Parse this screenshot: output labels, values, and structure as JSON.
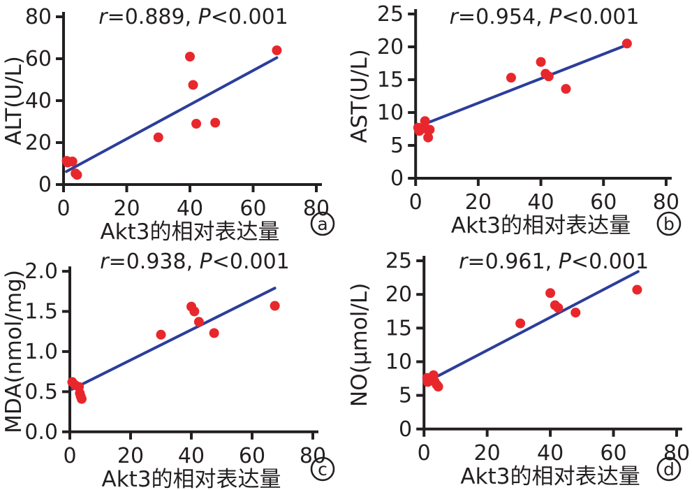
{
  "figure": {
    "background": "#ffffff"
  },
  "colors": {
    "point": "#e8272c",
    "trend_line": "#2c3e9a",
    "axis": "#231f20",
    "text": "#231f20"
  },
  "chart_data": [
    {
      "id": "a",
      "type": "scatter",
      "badge": "a",
      "ylabel": "ALT(U/L)",
      "xlabel": "Akt3的相对表达量",
      "annotation": "r=0.889, P<0.001",
      "annotation_parts": [
        {
          "text": "r",
          "italic": true
        },
        {
          "text": "=0.889, ",
          "italic": false
        },
        {
          "text": "P",
          "italic": true
        },
        {
          "text": "<0.001",
          "italic": false
        }
      ],
      "xlim": [
        0,
        80
      ],
      "ylim": [
        0,
        80
      ],
      "xticks": {
        "values": [
          0,
          20,
          40,
          60,
          80
        ],
        "labels": [
          "0",
          "20",
          "40",
          "60",
          "80"
        ]
      },
      "yticks": {
        "values": [
          0,
          20,
          40,
          60,
          80
        ],
        "labels": [
          "0",
          "20",
          "40",
          "60",
          "80"
        ]
      },
      "grid": false,
      "legend": null,
      "points": [
        [
          1,
          11.3
        ],
        [
          1.3,
          10.5
        ],
        [
          2.8,
          11.0
        ],
        [
          3.8,
          5.3
        ],
        [
          4.3,
          4.6
        ],
        [
          30,
          22.5
        ],
        [
          40,
          61
        ],
        [
          41,
          47.5
        ],
        [
          42,
          29
        ],
        [
          48,
          29.5
        ],
        [
          67.5,
          64
        ]
      ],
      "trend_line": {
        "x1": 0.9,
        "y1": 6.2,
        "x2": 67.5,
        "y2": 60.5
      }
    },
    {
      "id": "b",
      "type": "scatter",
      "badge": "b",
      "ylabel": "AST(U/L)",
      "xlabel": "Akt3的相对表达量",
      "annotation": "r=0.954, P<0.001",
      "annotation_parts": [
        {
          "text": "r",
          "italic": true
        },
        {
          "text": "=0.954, ",
          "italic": false
        },
        {
          "text": "P",
          "italic": true
        },
        {
          "text": "<0.001",
          "italic": false
        }
      ],
      "xlim": [
        0,
        80
      ],
      "ylim": [
        0,
        25
      ],
      "xticks": {
        "values": [
          0,
          20,
          40,
          60,
          80
        ],
        "labels": [
          "0",
          "20",
          "40",
          "60",
          "80"
        ]
      },
      "yticks": {
        "values": [
          0,
          5,
          10,
          15,
          20,
          25
        ],
        "labels": [
          "0",
          "5",
          "10",
          "15",
          "20",
          "25"
        ]
      },
      "grid": false,
      "legend": null,
      "points": [
        [
          0.8,
          7.7
        ],
        [
          1.2,
          7.2
        ],
        [
          3,
          8.7
        ],
        [
          3.5,
          7.5
        ],
        [
          4.5,
          7.4
        ],
        [
          4,
          6.2
        ],
        [
          30.5,
          15.3
        ],
        [
          40,
          17.7
        ],
        [
          41.5,
          15.9
        ],
        [
          42.5,
          15.5
        ],
        [
          48,
          13.6
        ],
        [
          67.5,
          20.5
        ]
      ],
      "trend_line": {
        "x1": 1.5,
        "y1": 8.0,
        "x2": 67,
        "y2": 20.2
      }
    },
    {
      "id": "c",
      "type": "scatter",
      "badge": "c",
      "ylabel": "MDA(nmol/mg)",
      "xlabel": "Akt3的相对表达量",
      "annotation": "r=0.938, P<0.001",
      "annotation_parts": [
        {
          "text": "r",
          "italic": true
        },
        {
          "text": "=0.938, ",
          "italic": false
        },
        {
          "text": "P",
          "italic": true
        },
        {
          "text": "<0.001",
          "italic": false
        }
      ],
      "xlim": [
        0,
        80
      ],
      "ylim": [
        0,
        2.0
      ],
      "xticks": {
        "values": [
          0,
          20,
          40,
          60,
          80
        ],
        "labels": [
          "0",
          "20",
          "40",
          "60",
          "80"
        ]
      },
      "yticks": {
        "values": [
          0,
          0.5,
          1.0,
          1.5,
          2.0
        ],
        "labels": [
          "0.0",
          "0.5",
          "1.0",
          "1.5",
          "2.0"
        ]
      },
      "grid": false,
      "legend": null,
      "points": [
        [
          0.8,
          0.62
        ],
        [
          1.8,
          0.58
        ],
        [
          3,
          0.56
        ],
        [
          3.3,
          0.48
        ],
        [
          3.6,
          0.44
        ],
        [
          3.9,
          0.41
        ],
        [
          30,
          1.21
        ],
        [
          40,
          1.56
        ],
        [
          41,
          1.5
        ],
        [
          42.5,
          1.37
        ],
        [
          47.5,
          1.23
        ],
        [
          67.5,
          1.57
        ]
      ],
      "trend_line": {
        "x1": 0.7,
        "y1": 0.53,
        "x2": 67.5,
        "y2": 1.79
      }
    },
    {
      "id": "d",
      "type": "scatter",
      "badge": "d",
      "ylabel": "NO(μmol/L)",
      "xlabel": "Akt3的相对表达量",
      "annotation": "r=0.961, P<0.001",
      "annotation_parts": [
        {
          "text": "r",
          "italic": true
        },
        {
          "text": "=0.961, ",
          "italic": false
        },
        {
          "text": "P",
          "italic": true
        },
        {
          "text": "<0.001",
          "italic": false
        }
      ],
      "xlim": [
        0,
        80
      ],
      "ylim": [
        0,
        25
      ],
      "xticks": {
        "values": [
          0,
          20,
          40,
          60,
          80
        ],
        "labels": [
          "0",
          "20",
          "40",
          "60",
          "80"
        ]
      },
      "yticks": {
        "values": [
          0,
          5,
          10,
          15,
          20,
          25
        ],
        "labels": [
          "0",
          "5",
          "10",
          "15",
          "20",
          "25"
        ]
      },
      "grid": false,
      "legend": null,
      "points": [
        [
          1,
          7.6
        ],
        [
          1.2,
          7.0
        ],
        [
          3,
          8.0
        ],
        [
          3.3,
          7.1
        ],
        [
          4,
          6.6
        ],
        [
          4.5,
          6.3
        ],
        [
          30.5,
          15.7
        ],
        [
          40,
          20.2
        ],
        [
          41.5,
          18.4
        ],
        [
          42.5,
          18.0
        ],
        [
          48,
          17.3
        ],
        [
          67.5,
          20.7
        ]
      ],
      "trend_line": {
        "x1": 4.5,
        "y1": 7.9,
        "x2": 67.8,
        "y2": 23.4
      }
    }
  ]
}
